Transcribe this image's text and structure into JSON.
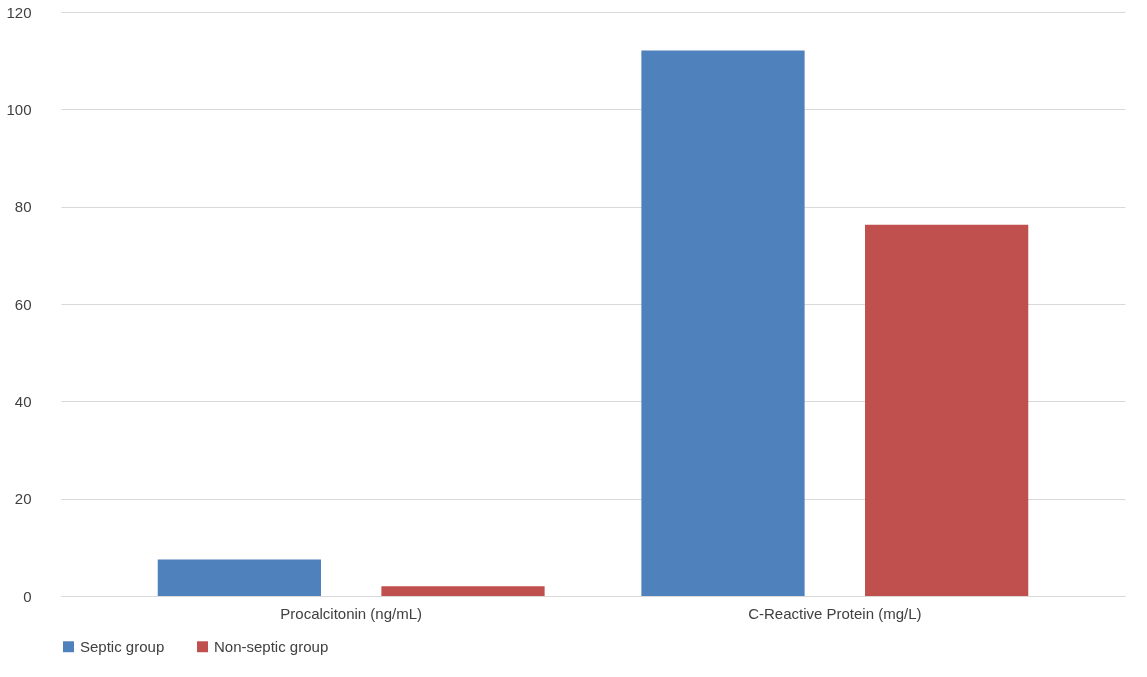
{
  "chart_data": {
    "type": "bar",
    "categories": [
      "Procalcitonin (ng/mL)",
      "C-Reactive Protein (mg/L)"
    ],
    "series": [
      {
        "name": "Septic group",
        "color": "#4f81bd",
        "values": [
          7.5,
          112.1
        ]
      },
      {
        "name": "Non-septic group",
        "color": "#c0504d",
        "values": [
          2.0,
          76.3
        ]
      }
    ],
    "ylim": [
      0,
      120
    ],
    "yticks": [
      0,
      20,
      40,
      60,
      80,
      100,
      120
    ],
    "grid": "y",
    "legend": "bottom"
  }
}
